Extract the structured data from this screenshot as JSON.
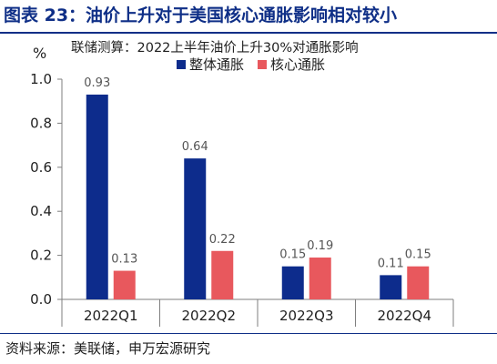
{
  "header": {
    "title": "图表 23：油价上升对于美国核心通胀影响相对较小"
  },
  "footer": {
    "source": "资料来源：美联储，申万宏源研究"
  },
  "colors": {
    "brand": "#0f2f87",
    "series_overall": "#0d2c8c",
    "series_core": "#e8585d"
  },
  "chart_data": {
    "type": "bar",
    "title": "联储测算：2022上半年油价上升30%对通胀影响",
    "ylabel": "%",
    "xlabel": "",
    "categories": [
      "2022Q1",
      "2022Q2",
      "2022Q3",
      "2022Q4"
    ],
    "series": [
      {
        "name": "整体通胀",
        "values": [
          0.93,
          0.64,
          0.15,
          0.11
        ]
      },
      {
        "name": "核心通胀",
        "values": [
          0.13,
          0.22,
          0.19,
          0.15
        ]
      }
    ],
    "data_labels": [
      [
        "0.93",
        "0.64",
        "0.15",
        "0.11"
      ],
      [
        "0.13",
        "0.22",
        "0.19",
        "0.15"
      ]
    ],
    "ylim": [
      0,
      1.0
    ],
    "yticks": [
      "0.0",
      "0.2",
      "0.4",
      "0.6",
      "0.8",
      "1.0"
    ],
    "grid": false,
    "legend_position": "top"
  }
}
